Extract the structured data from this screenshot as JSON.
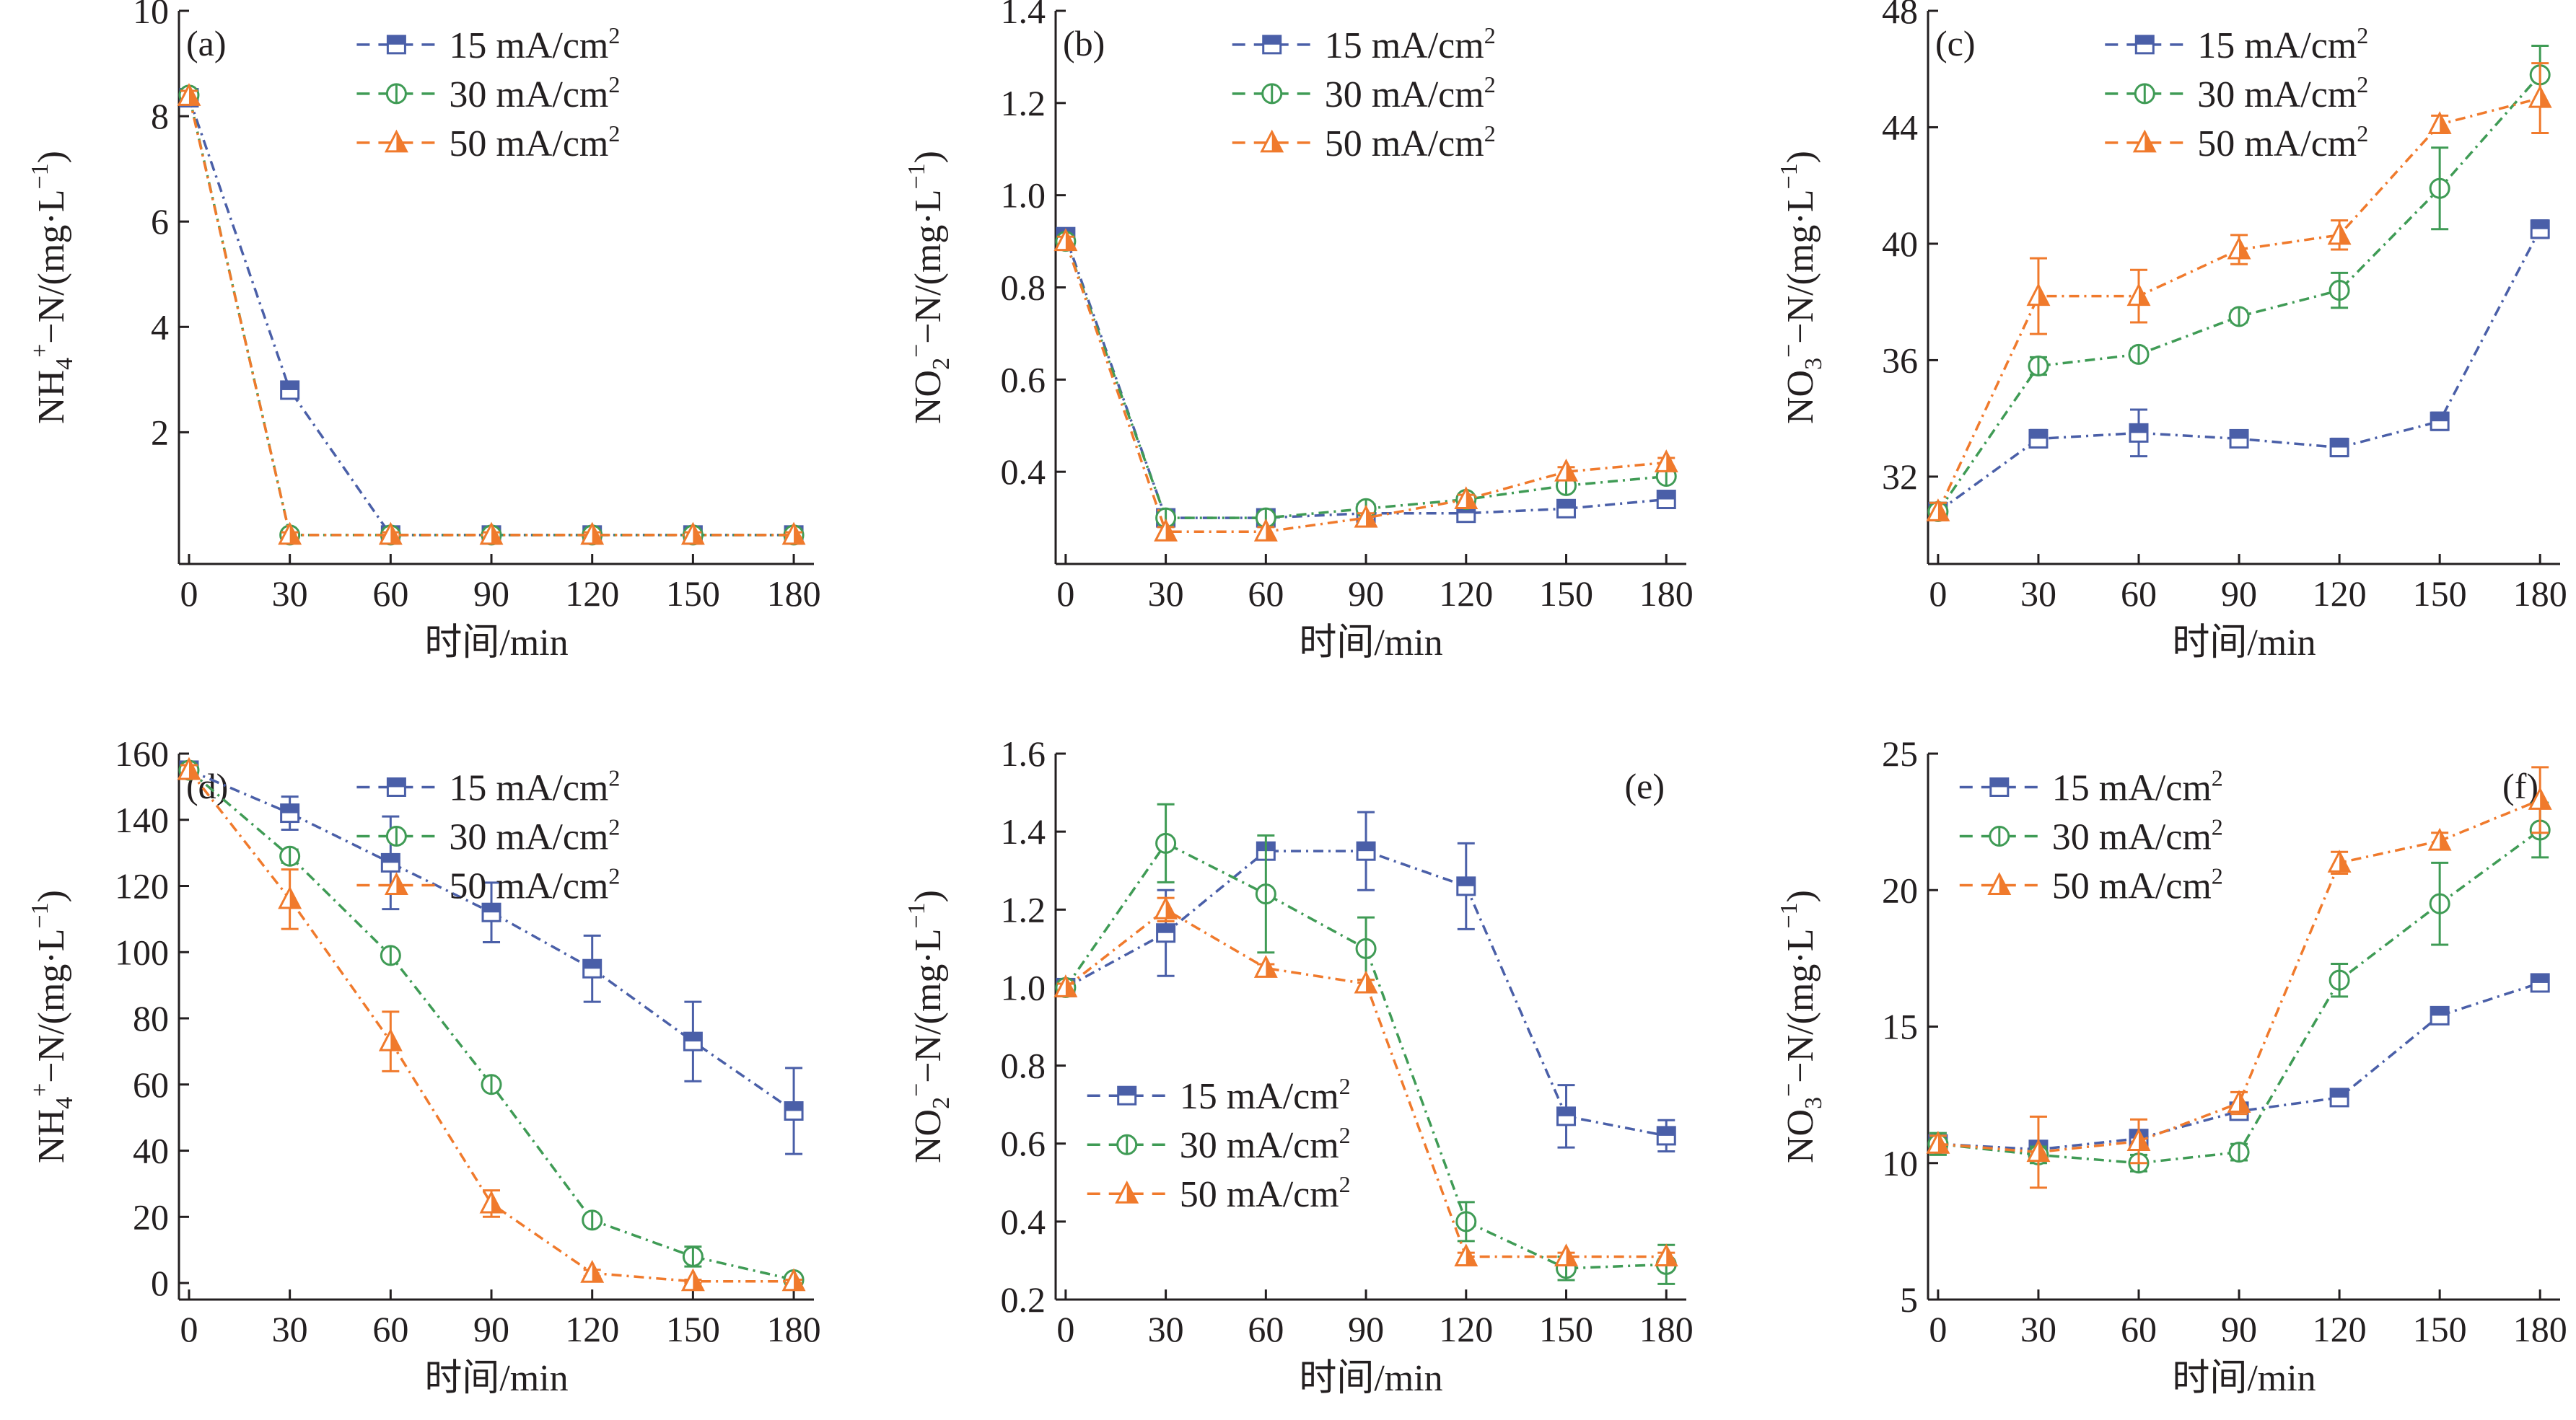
{
  "figure": {
    "colors": {
      "15 mA/cm2": "#4a5fa8",
      "30 mA/cm2": "#3f9b55",
      "50 mA/cm2": "#f07a2c",
      "axis": "#231f20"
    },
    "legend_labels": [
      {
        "main": "15 mA/cm",
        "sup": "2"
      },
      {
        "main": "30 mA/cm",
        "sup": "2"
      },
      {
        "main": "50 mA/cm",
        "sup": "2"
      }
    ]
  },
  "chart_data": [
    {
      "panel": "(a)",
      "type": "line",
      "xlabel": "时间/min",
      "ylabel": "NH4+-N/(mg·L-1)",
      "ylabel_parts": {
        "main": "NH",
        "sub": "4",
        "sup": "+",
        "rest": "−N/(mg·L",
        "unit_sup": "−1",
        "close": ")"
      },
      "x": [
        0,
        30,
        60,
        90,
        120,
        150,
        180
      ],
      "xlim": [
        -3,
        186
      ],
      "ylim": [
        -0.5,
        10
      ],
      "yticks": [
        2,
        4,
        6,
        8,
        10
      ],
      "xticks": [
        0,
        30,
        60,
        90,
        120,
        150,
        180
      ],
      "legend_position": "top-center",
      "series": [
        {
          "name": "15 mA/cm2",
          "marker": "square",
          "values": [
            8.35,
            2.8,
            0.05,
            0.05,
            0.05,
            0.05,
            0.05
          ],
          "errors": [
            0.1,
            0.12,
            0.05,
            0.05,
            0.05,
            0.05,
            0.05
          ]
        },
        {
          "name": "30 mA/cm2",
          "marker": "circle",
          "values": [
            8.4,
            0.05,
            0.05,
            0.05,
            0.05,
            0.05,
            0.05
          ],
          "errors": [
            0.1,
            0.05,
            0.05,
            0.05,
            0.05,
            0.05,
            0.05
          ]
        },
        {
          "name": "50 mA/cm2",
          "marker": "triangle",
          "values": [
            8.38,
            0.05,
            0.05,
            0.05,
            0.05,
            0.05,
            0.05
          ],
          "errors": [
            0.1,
            0.05,
            0.05,
            0.05,
            0.05,
            0.05,
            0.05
          ]
        }
      ]
    },
    {
      "panel": "(b)",
      "type": "line",
      "xlabel": "时间/min",
      "ylabel": "NO2−-N/(mg·L-1)",
      "ylabel_parts": {
        "main": "NO",
        "sub": "2",
        "sup": "−",
        "rest": "−N/(mg·L",
        "unit_sup": "−1",
        "close": ")"
      },
      "x": [
        0,
        30,
        60,
        90,
        120,
        150,
        180
      ],
      "xlim": [
        -3,
        186
      ],
      "ylim": [
        0.2,
        1.4
      ],
      "yticks": [
        0.4,
        0.6,
        0.8,
        1.0,
        1.2,
        1.4
      ],
      "xticks": [
        0,
        30,
        60,
        90,
        120,
        150,
        180
      ],
      "legend_position": "top-center",
      "series": [
        {
          "name": "15 mA/cm2",
          "marker": "square",
          "values": [
            0.91,
            0.3,
            0.3,
            0.31,
            0.31,
            0.32,
            0.34
          ],
          "errors": [
            0.01,
            0.01,
            0.01,
            0.01,
            0.01,
            0.01,
            0.01
          ]
        },
        {
          "name": "30 mA/cm2",
          "marker": "circle",
          "values": [
            0.9,
            0.3,
            0.3,
            0.32,
            0.34,
            0.37,
            0.39
          ],
          "errors": [
            0.01,
            0.01,
            0.01,
            0.01,
            0.01,
            0.01,
            0.01
          ]
        },
        {
          "name": "50 mA/cm2",
          "marker": "triangle",
          "values": [
            0.9,
            0.27,
            0.27,
            0.3,
            0.34,
            0.4,
            0.42
          ],
          "errors": [
            0.01,
            0.01,
            0.01,
            0.01,
            0.01,
            0.01,
            0.01
          ]
        }
      ]
    },
    {
      "panel": "(c)",
      "type": "line",
      "xlabel": "时间/min",
      "ylabel": "NO3−-N/(mg·L-1)",
      "ylabel_parts": {
        "main": "NO",
        "sub": "3",
        "sup": "−",
        "rest": "−N/(mg·L",
        "unit_sup": "−1",
        "close": ")"
      },
      "x": [
        0,
        30,
        60,
        90,
        120,
        150,
        180
      ],
      "xlim": [
        -3,
        186
      ],
      "ylim": [
        29,
        48
      ],
      "yticks": [
        32,
        36,
        40,
        44,
        48
      ],
      "xticks": [
        0,
        30,
        60,
        90,
        120,
        150,
        180
      ],
      "legend_position": "top-center",
      "series": [
        {
          "name": "15 mA/cm2",
          "marker": "square",
          "values": [
            30.8,
            33.3,
            33.5,
            33.3,
            33.0,
            33.9,
            40.5
          ],
          "errors": [
            0.3,
            0.3,
            0.8,
            0.2,
            0.3,
            0.3,
            0.3
          ]
        },
        {
          "name": "30 mA/cm2",
          "marker": "circle",
          "values": [
            30.8,
            35.8,
            36.2,
            37.5,
            38.4,
            41.9,
            45.8
          ],
          "errors": [
            0.3,
            0.3,
            0.2,
            0.2,
            0.6,
            1.4,
            1.0
          ]
        },
        {
          "name": "50 mA/cm2",
          "marker": "triangle",
          "values": [
            30.8,
            38.2,
            38.2,
            39.8,
            40.3,
            44.1,
            45.0
          ],
          "errors": [
            0.3,
            1.3,
            0.9,
            0.5,
            0.5,
            0.3,
            1.2
          ]
        }
      ]
    },
    {
      "panel": "(d)",
      "type": "line",
      "xlabel": "时间/min",
      "ylabel": "NH4+-N/(mg·L-1)",
      "ylabel_parts": {
        "main": "NH",
        "sub": "4",
        "sup": "+",
        "rest": "−N/(mg·L",
        "unit_sup": "−1",
        "close": ")"
      },
      "x": [
        0,
        30,
        60,
        90,
        120,
        150,
        180
      ],
      "xlim": [
        -3,
        186
      ],
      "ylim": [
        -5,
        160
      ],
      "yticks": [
        0,
        20,
        40,
        60,
        80,
        100,
        120,
        140,
        160
      ],
      "xticks": [
        0,
        30,
        60,
        90,
        120,
        150,
        180
      ],
      "legend_position": "top-center",
      "series": [
        {
          "name": "15 mA/cm2",
          "marker": "square",
          "values": [
            155,
            142,
            127,
            112,
            95,
            73,
            52
          ],
          "errors": [
            1.5,
            5,
            14,
            9,
            10,
            12,
            13
          ]
        },
        {
          "name": "30 mA/cm2",
          "marker": "circle",
          "values": [
            155,
            129,
            99,
            60,
            19,
            8,
            1
          ],
          "errors": [
            1.5,
            2,
            1.5,
            1.5,
            1.5,
            3,
            1
          ]
        },
        {
          "name": "50 mA/cm2",
          "marker": "triangle",
          "values": [
            155,
            116,
            73,
            24,
            3,
            0.5,
            0.5
          ],
          "errors": [
            1.5,
            9,
            9,
            4,
            1,
            0.5,
            0.5
          ]
        }
      ]
    },
    {
      "panel": "(e)",
      "type": "line",
      "xlabel": "时间/min",
      "ylabel": "NO2−-N/(mg·L-1)",
      "ylabel_parts": {
        "main": "NO",
        "sub": "2",
        "sup": "−",
        "rest": "−N/(mg·L",
        "unit_sup": "−1",
        "close": ")"
      },
      "x": [
        0,
        30,
        60,
        90,
        120,
        150,
        180
      ],
      "xlim": [
        -3,
        186
      ],
      "ylim": [
        0.2,
        1.6
      ],
      "yticks": [
        0.2,
        0.4,
        0.6,
        0.8,
        1.0,
        1.2,
        1.4,
        1.6
      ],
      "xticks": [
        0,
        30,
        60,
        90,
        120,
        150,
        180
      ],
      "legend_position": "bottom-left",
      "series": [
        {
          "name": "15 mA/cm2",
          "marker": "square",
          "values": [
            1.0,
            1.14,
            1.35,
            1.35,
            1.26,
            0.67,
            0.62
          ],
          "errors": [
            0.01,
            0.11,
            0.02,
            0.1,
            0.11,
            0.08,
            0.04
          ]
        },
        {
          "name": "30 mA/cm2",
          "marker": "circle",
          "values": [
            1.0,
            1.37,
            1.24,
            1.1,
            0.4,
            0.28,
            0.29
          ],
          "errors": [
            0.01,
            0.1,
            0.15,
            0.08,
            0.05,
            0.03,
            0.05
          ]
        },
        {
          "name": "50 mA/cm2",
          "marker": "triangle",
          "values": [
            1.0,
            1.2,
            1.05,
            1.01,
            0.31,
            0.31,
            0.31
          ],
          "errors": [
            0.01,
            0.03,
            0.01,
            0.01,
            0.01,
            0.01,
            0.01
          ]
        }
      ]
    },
    {
      "panel": "(f)",
      "type": "line",
      "xlabel": "时间/min",
      "ylabel": "NO3−-N/(mg·L-1)",
      "ylabel_parts": {
        "main": "NO",
        "sub": "3",
        "sup": "−",
        "rest": "−N/(mg·L",
        "unit_sup": "−1",
        "close": ")"
      },
      "x": [
        0,
        30,
        60,
        90,
        120,
        150,
        180
      ],
      "xlim": [
        -3,
        186
      ],
      "ylim": [
        5,
        25
      ],
      "yticks": [
        5,
        10,
        15,
        20,
        25
      ],
      "xticks": [
        0,
        30,
        60,
        90,
        120,
        150,
        180
      ],
      "legend_position": "top-left",
      "series": [
        {
          "name": "15 mA/cm2",
          "marker": "square",
          "values": [
            10.7,
            10.5,
            10.9,
            11.9,
            12.4,
            15.4,
            16.6
          ],
          "errors": [
            0.3,
            0.2,
            0.2,
            0.2,
            0.2,
            0.3,
            0.3
          ]
        },
        {
          "name": "30 mA/cm2",
          "marker": "circle",
          "values": [
            10.7,
            10.3,
            10.0,
            10.4,
            16.7,
            19.5,
            22.2
          ],
          "errors": [
            0.4,
            0.3,
            0.3,
            0.3,
            0.6,
            1.5,
            1.0
          ]
        },
        {
          "name": "50 mA/cm2",
          "marker": "triangle",
          "values": [
            10.7,
            10.4,
            10.8,
            12.2,
            21.0,
            21.8,
            23.3
          ],
          "errors": [
            0.3,
            1.3,
            0.8,
            0.4,
            0.4,
            0.3,
            1.2
          ]
        }
      ]
    }
  ]
}
